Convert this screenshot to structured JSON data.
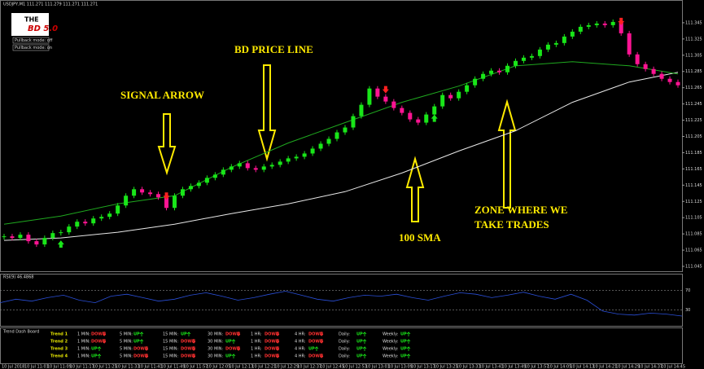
{
  "header": {
    "symbol": "USDJPY,M1 111.271 111.279 111.271 111.271",
    "logo_top": "THE",
    "logo_bottom": "BD 5.0",
    "pullback_off": "Pullback mode: off",
    "pullback_on": "Pullback mode: on"
  },
  "chart_data": {
    "type": "candlestick",
    "closes": [
      111.082,
      111.08,
      111.084,
      111.076,
      111.072,
      111.08,
      111.086,
      111.087,
      111.094,
      111.1,
      111.098,
      111.104,
      111.106,
      111.11,
      111.12,
      111.132,
      111.14,
      111.136,
      111.134,
      111.13,
      111.117,
      111.132,
      111.14,
      111.144,
      111.148,
      111.154,
      111.158,
      111.164,
      111.168,
      111.172,
      111.166,
      111.164,
      111.168,
      111.17,
      111.174,
      111.178,
      111.18,
      111.184,
      111.19,
      111.196,
      111.202,
      111.21,
      111.216,
      111.23,
      111.244,
      111.264,
      111.254,
      111.248,
      111.24,
      111.234,
      111.226,
      111.222,
      111.232,
      111.242,
      111.256,
      111.252,
      111.26,
      111.268,
      111.276,
      111.282,
      111.286,
      111.284,
      111.292,
      111.298,
      111.302,
      111.304,
      111.312,
      111.318,
      111.32,
      111.328,
      111.334,
      111.34,
      111.342,
      111.344,
      111.342,
      111.346,
      111.332,
      111.306,
      111.294,
      111.288,
      111.282,
      111.276,
      111.272,
      111.268
    ],
    "up_color": "#19e619",
    "down_color": "#ff1493",
    "ylim": [
      111.039,
      111.372
    ],
    "yticks": [
      111.045,
      111.065,
      111.085,
      111.105,
      111.125,
      111.145,
      111.165,
      111.185,
      111.205,
      111.225,
      111.245,
      111.265,
      111.285,
      111.305,
      111.325,
      111.345
    ],
    "price_line": {
      "x": [
        0,
        7,
        14,
        21,
        28,
        35,
        42,
        49,
        56,
        63,
        70,
        77,
        83
      ],
      "values": [
        111.097,
        111.107,
        111.122,
        111.132,
        111.167,
        111.197,
        111.222,
        111.247,
        111.267,
        111.292,
        111.297,
        111.292,
        111.282
      ],
      "color": "#1fa81f"
    },
    "sma": {
      "x": [
        0,
        7,
        14,
        21,
        28,
        35,
        42,
        49,
        56,
        63,
        70,
        77,
        83
      ],
      "values": [
        111.077,
        111.08,
        111.087,
        111.097,
        111.11,
        111.122,
        111.137,
        111.16,
        111.187,
        111.212,
        111.247,
        111.272,
        111.284
      ],
      "color": "#e8e8e8"
    },
    "sell_signals": [
      20,
      47,
      76
    ],
    "buy_signals": [
      7,
      53
    ],
    "x_labels": [
      "10 Jul 2018",
      "10 Jul 11:01",
      "10 Jul 11:09",
      "10 Jul 11:17",
      "10 Jul 11:25",
      "10 Jul 11:33",
      "10 Jul 11:41",
      "10 Jul 11:49",
      "10 Jul 11:57",
      "10 Jul 12:05",
      "10 Jul 12:13",
      "10 Jul 12:21",
      "10 Jul 12:29",
      "10 Jul 12:37",
      "10 Jul 12:45",
      "10 Jul 12:53",
      "10 Jul 13:01",
      "10 Jul 13:09",
      "10 Jul 13:17",
      "10 Jul 13:25",
      "10 Jul 13:33",
      "10 Jul 13:41",
      "10 Jul 13:49",
      "10 Jul 13:57",
      "10 Jul 14:05",
      "10 Jul 14:13",
      "10 Jul 14:21",
      "10 Jul 14:29",
      "10 Jul 14:37",
      "10 Jul 14:45"
    ]
  },
  "annotations": {
    "signal_arrow": "SIGNAL ARROW",
    "price_line": "BD PRICE LINE",
    "sma": "100 SMA",
    "zone_1": "ZONE WHERE WE",
    "zone_2": "TAKE TRADES"
  },
  "rsi": {
    "label": "RSI(9) 46.4868",
    "color": "#2a4fd8",
    "ylim": [
      0,
      100
    ],
    "levels": [
      70,
      30
    ],
    "values": [
      45,
      52,
      48,
      55,
      60,
      50,
      45,
      58,
      62,
      55,
      48,
      52,
      60,
      65,
      58,
      50,
      55,
      62,
      68,
      60,
      52,
      48,
      55,
      60,
      58,
      62,
      55,
      50,
      58,
      65,
      62,
      55,
      60,
      66,
      58,
      52,
      62,
      50,
      28,
      22,
      20,
      24,
      22,
      18
    ]
  },
  "dashboard": {
    "title": "Trend Dash Board",
    "columns": [
      "1 MIN:",
      "5 MIN:",
      "15 MIN:",
      "30 MIN:",
      "1 HR:",
      "4 HR:",
      "Daily:",
      "Weekly:"
    ],
    "rows": [
      {
        "name": "Trend 1",
        "states": [
          "DOWN",
          "UP",
          "UP",
          "DOWN",
          "DOWN",
          "DOWN",
          "UP",
          "UP"
        ]
      },
      {
        "name": "Trend 2",
        "states": [
          "DOWN",
          "UP",
          "DOWN",
          "UP",
          "DOWN",
          "DOWN",
          "UP",
          "UP"
        ]
      },
      {
        "name": "Trend 3",
        "states": [
          "UP",
          "DOWN",
          "DOWN",
          "DOWN",
          "DOWN",
          "UP",
          "UP",
          "UP"
        ]
      },
      {
        "name": "Trend 4",
        "states": [
          "UP",
          "DOWN",
          "DOWN",
          "UP",
          "DOWN",
          "DOWN",
          "UP",
          "UP"
        ]
      }
    ]
  }
}
